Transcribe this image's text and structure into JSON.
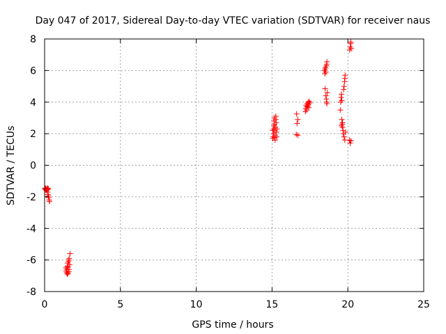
{
  "chart_data": {
    "type": "scatter",
    "title": "Day 047 of 2017, Sidereal Day-to-day VTEC variation (SDTVAR) for receiver naus",
    "xlabel": "GPS time / hours",
    "ylabel": "SDTVAR / TECUs",
    "xlim": [
      0,
      25
    ],
    "ylim": [
      -8,
      8
    ],
    "x_ticks": [
      0,
      5,
      10,
      15,
      20,
      25
    ],
    "y_ticks": [
      -8,
      -6,
      -4,
      -2,
      0,
      2,
      4,
      6,
      8
    ],
    "x_tick_labels": [
      "0",
      "5",
      "10",
      "15",
      "20",
      "25"
    ],
    "y_tick_labels": [
      "-8",
      "-6",
      "-4",
      "-2",
      "0",
      "2",
      "4",
      "6",
      "8"
    ],
    "grid": true,
    "legend": "none",
    "marker": "+",
    "color": "#ff0000",
    "series": [
      {
        "name": "SDTVAR",
        "points": [
          [
            0.02,
            -1.5
          ],
          [
            0.05,
            -1.45
          ],
          [
            0.08,
            -1.55
          ],
          [
            0.1,
            -1.5
          ],
          [
            0.12,
            -1.6
          ],
          [
            0.15,
            -1.5
          ],
          [
            0.18,
            -1.55
          ],
          [
            0.2,
            -1.7
          ],
          [
            0.22,
            -1.85
          ],
          [
            0.25,
            -1.95
          ],
          [
            0.27,
            -2.05
          ],
          [
            0.3,
            -2.2
          ],
          [
            0.32,
            -2.3
          ],
          [
            0.2,
            -1.45
          ],
          [
            0.25,
            -1.5
          ],
          [
            1.4,
            -6.5
          ],
          [
            1.42,
            -6.7
          ],
          [
            1.45,
            -6.8
          ],
          [
            1.48,
            -6.6
          ],
          [
            1.5,
            -6.4
          ],
          [
            1.52,
            -6.2
          ],
          [
            1.5,
            -6.9
          ],
          [
            1.55,
            -6.85
          ],
          [
            1.6,
            -6.75
          ],
          [
            1.62,
            -6.6
          ],
          [
            1.65,
            -6.3
          ],
          [
            1.6,
            -6.0
          ],
          [
            1.62,
            -5.9
          ],
          [
            1.68,
            -5.6
          ],
          [
            1.58,
            -6.1
          ],
          [
            1.55,
            -6.45
          ],
          [
            15.05,
            1.7
          ],
          [
            15.08,
            1.8
          ],
          [
            15.1,
            2.0
          ],
          [
            15.1,
            2.3
          ],
          [
            15.12,
            2.5
          ],
          [
            15.12,
            2.8
          ],
          [
            15.15,
            3.0
          ],
          [
            15.15,
            2.6
          ],
          [
            15.18,
            2.2
          ],
          [
            15.2,
            1.9
          ],
          [
            15.2,
            1.6
          ],
          [
            15.22,
            2.4
          ],
          [
            15.25,
            2.9
          ],
          [
            15.25,
            3.1
          ],
          [
            15.28,
            2.7
          ],
          [
            15.3,
            2.1
          ],
          [
            15.3,
            1.8
          ],
          [
            15.32,
            2.3
          ],
          [
            15.05,
            2.2
          ],
          [
            15.18,
            1.75
          ],
          [
            16.65,
            2.65
          ],
          [
            16.7,
            2.9
          ],
          [
            16.62,
            3.25
          ],
          [
            16.6,
            1.95
          ],
          [
            16.7,
            1.9
          ],
          [
            17.2,
            3.4
          ],
          [
            17.22,
            3.6
          ],
          [
            17.25,
            3.8
          ],
          [
            17.28,
            3.5
          ],
          [
            17.3,
            3.7
          ],
          [
            17.32,
            3.9
          ],
          [
            17.35,
            3.75
          ],
          [
            17.38,
            4.0
          ],
          [
            17.4,
            3.85
          ],
          [
            17.45,
            4.05
          ],
          [
            17.5,
            3.95
          ],
          [
            17.42,
            3.65
          ],
          [
            18.45,
            6.0
          ],
          [
            18.48,
            5.8
          ],
          [
            18.5,
            6.1
          ],
          [
            18.52,
            6.2
          ],
          [
            18.55,
            5.9
          ],
          [
            18.58,
            6.3
          ],
          [
            18.6,
            6.4
          ],
          [
            18.62,
            6.55
          ],
          [
            18.5,
            4.85
          ],
          [
            18.55,
            4.4
          ],
          [
            18.58,
            4.2
          ],
          [
            18.6,
            4.0
          ],
          [
            18.62,
            3.9
          ],
          [
            18.65,
            4.6
          ],
          [
            19.5,
            3.5
          ],
          [
            19.52,
            4.0
          ],
          [
            19.55,
            4.3
          ],
          [
            19.58,
            4.5
          ],
          [
            19.6,
            4.1
          ],
          [
            19.6,
            2.9
          ],
          [
            19.62,
            2.6
          ],
          [
            19.65,
            2.4
          ],
          [
            19.68,
            2.2
          ],
          [
            19.7,
            2.0
          ],
          [
            19.72,
            4.8
          ],
          [
            19.75,
            5.0
          ],
          [
            19.78,
            5.3
          ],
          [
            19.8,
            5.5
          ],
          [
            19.82,
            5.7
          ],
          [
            19.75,
            1.8
          ],
          [
            19.8,
            1.6
          ],
          [
            19.85,
            2.1
          ],
          [
            19.65,
            2.7
          ],
          [
            19.58,
            2.5
          ],
          [
            20.1,
            1.6
          ],
          [
            20.15,
            1.4
          ],
          [
            20.2,
            1.55
          ],
          [
            20.12,
            7.3
          ],
          [
            20.15,
            7.5
          ],
          [
            20.18,
            7.7
          ],
          [
            20.2,
            7.8
          ],
          [
            20.22,
            7.4
          ]
        ]
      }
    ]
  }
}
